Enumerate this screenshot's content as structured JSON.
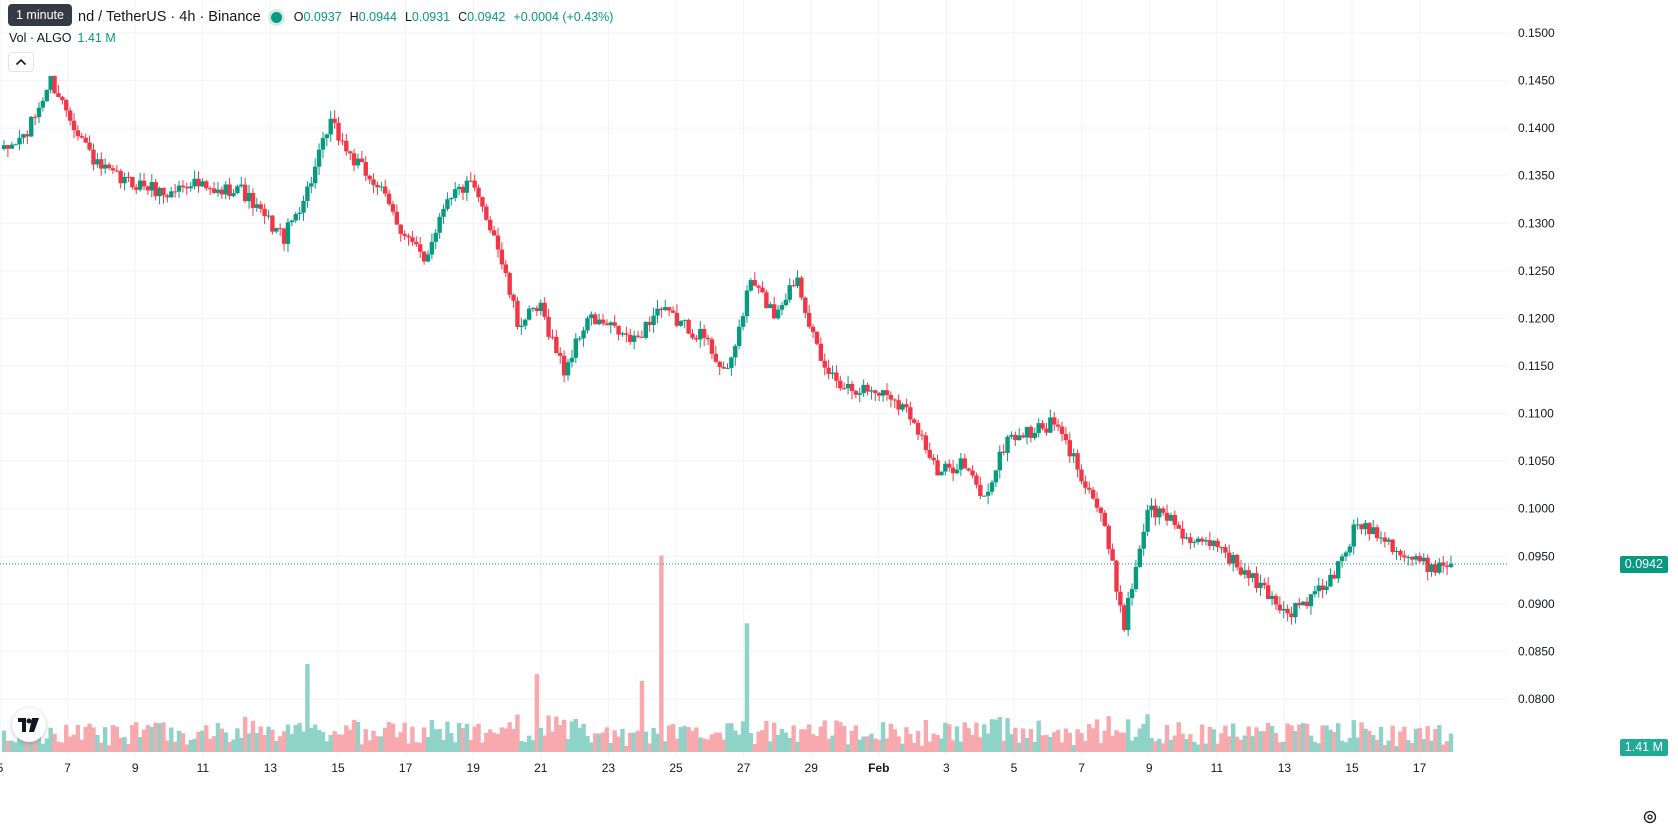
{
  "header": {
    "symbol_title": "nd / TetherUS · 4h · Binance",
    "tooltip": "1 minute",
    "ohlc": [
      {
        "key": "O",
        "value": "0.0937"
      },
      {
        "key": "H",
        "value": "0.0944"
      },
      {
        "key": "L",
        "value": "0.0931"
      },
      {
        "key": "C",
        "value": "0.0942"
      }
    ],
    "change": "+0.0004 (+0.43%)",
    "volume_label": "Vol · ALGO",
    "volume_value": "1.41 M"
  },
  "badges": {
    "price": "0.0942",
    "volume": "1.41 M"
  },
  "colors": {
    "up": "#089981",
    "down": "#f23645",
    "up_volume": "#8fd3c8",
    "down_volume": "#f7a9ae",
    "grid": "#f0f3fa"
  },
  "icons": {
    "collapse": "chevron-up-icon",
    "logo": "tradingview-logo-icon",
    "settings": "gear-icon"
  },
  "chart_data": {
    "type": "candlestick",
    "interval": "4h",
    "ylim": [
      0.0765,
      0.1525
    ],
    "y_ticks": [
      "0.1500",
      "0.1450",
      "0.1400",
      "0.1350",
      "0.1300",
      "0.1250",
      "0.1200",
      "0.1150",
      "0.1100",
      "0.1050",
      "0.1000",
      "0.0950",
      "0.0900",
      "0.0850",
      "0.0800"
    ],
    "x_ticks": [
      "5",
      "7",
      "9",
      "11",
      "13",
      "15",
      "17",
      "19",
      "21",
      "23",
      "25",
      "27",
      "29",
      "Feb",
      "3",
      "5",
      "7",
      "9",
      "11",
      "13",
      "15",
      "17"
    ],
    "grid": true,
    "last_price": 0.0942,
    "anchors": [
      0.1375,
      0.1395,
      0.145,
      0.1405,
      0.136,
      0.1345,
      0.134,
      0.133,
      0.1345,
      0.133,
      0.134,
      0.131,
      0.1285,
      0.1335,
      0.1405,
      0.1365,
      0.134,
      0.1295,
      0.126,
      0.133,
      0.134,
      0.129,
      0.1195,
      0.121,
      0.1145,
      0.12,
      0.119,
      0.1175,
      0.121,
      0.1195,
      0.118,
      0.114,
      0.124,
      0.1205,
      0.1245,
      0.115,
      0.113,
      0.1125,
      0.112,
      0.1095,
      0.1035,
      0.105,
      0.101,
      0.1075,
      0.108,
      0.109,
      0.1045,
      0.0995,
      0.088,
      0.1,
      0.099,
      0.096,
      0.0965,
      0.0935,
      0.0915,
      0.089,
      0.0905,
      0.093,
      0.0985,
      0.0975,
      0.095,
      0.094,
      0.0942
    ],
    "volume_ylim": [
      0,
      0.62
    ],
    "volume_spikes": [
      {
        "day_offset": 28.1,
        "value": 0.58
      },
      {
        "day_offset": 31.9,
        "value": 0.38
      },
      {
        "day_offset": 13.0,
        "value": 0.26
      },
      {
        "day_offset": 22.9,
        "value": 0.23
      },
      {
        "day_offset": 27.4,
        "value": 0.21
      }
    ]
  }
}
